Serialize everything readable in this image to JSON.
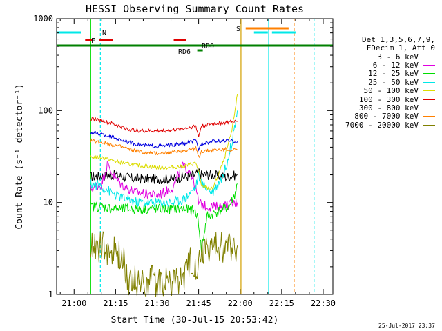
{
  "chart_data": {
    "type": "line",
    "title": "HESSI Observing Summary Count Rates",
    "xlabel": "Start Time (30-Jul-15 20:53:42)",
    "ylabel": "Count Rate (s⁻¹ detector⁻¹)",
    "ylog": true,
    "ylim": [
      1,
      1000
    ],
    "xlim_minutes": [
      -6.3,
      33.5
    ],
    "x_ticks": [
      "21:00",
      "21:15",
      "21:30",
      "21:45",
      "22:00",
      "22:15",
      "22:30"
    ],
    "x_tick_minutes": [
      0,
      15,
      30,
      45,
      60,
      75,
      90
    ],
    "y_ticks": [
      "1",
      "10",
      "100",
      "1000"
    ],
    "y_tick_values": [
      1,
      10,
      100,
      1000
    ],
    "legend_header": [
      "Det 1,3,5,6,7,9,",
      "FDecim 1, Att 0"
    ],
    "series": [
      {
        "name": "3 - 6 keV",
        "color": "#000000",
        "x": [
          6,
          10,
          15,
          20,
          25,
          30,
          35,
          40,
          44,
          45,
          46,
          50,
          55,
          59
        ],
        "y": [
          19,
          19.5,
          20,
          18.5,
          18,
          18,
          18,
          19,
          20,
          22,
          20,
          20,
          19,
          20
        ]
      },
      {
        "name": "6 - 12 keV",
        "color": "#e000e0",
        "x": [
          6,
          10,
          12,
          15,
          18,
          22,
          26,
          30,
          33,
          36,
          39,
          42,
          44,
          45,
          46,
          48,
          52,
          56,
          59
        ],
        "y": [
          14,
          16,
          26,
          18,
          15,
          13,
          12.5,
          12,
          13,
          15,
          25,
          22,
          14,
          10,
          9.5,
          9,
          9,
          9.5,
          10
        ]
      },
      {
        "name": "12 - 25 keV",
        "color": "#00dd00",
        "x": [
          6,
          10,
          15,
          20,
          25,
          30,
          35,
          40,
          44,
          45,
          46,
          48,
          52,
          56,
          58,
          59
        ],
        "y": [
          9,
          9,
          8.5,
          8.5,
          8.5,
          8.5,
          8.5,
          8.5,
          8,
          6,
          3,
          7,
          8,
          9,
          12,
          16
        ]
      },
      {
        "name": "25 - 50 keV",
        "color": "#00e8e8",
        "x": [
          6,
          10,
          15,
          20,
          25,
          30,
          35,
          40,
          44,
          45,
          46,
          50,
          54,
          57,
          59
        ],
        "y": [
          16,
          15,
          12,
          10.5,
          10,
          10,
          10,
          11,
          15,
          20,
          16,
          13,
          20,
          45,
          100
        ]
      },
      {
        "name": "50 - 100 keV",
        "color": "#dcdc00",
        "x": [
          6,
          10,
          15,
          20,
          25,
          30,
          35,
          40,
          44,
          45,
          46,
          50,
          54,
          57,
          59
        ],
        "y": [
          31,
          31,
          28,
          26,
          25,
          24,
          24,
          25,
          27,
          22,
          15,
          14,
          28,
          60,
          150
        ]
      },
      {
        "name": "100 - 300 keV",
        "color": "#e00000",
        "x": [
          6,
          10,
          15,
          20,
          25,
          30,
          35,
          40,
          44,
          45,
          46,
          50,
          55,
          59
        ],
        "y": [
          82,
          78,
          70,
          62,
          60,
          60,
          61,
          64,
          68,
          52,
          68,
          72,
          74,
          76
        ]
      },
      {
        "name": "300 - 800 keV",
        "color": "#0000e0",
        "x": [
          6,
          10,
          15,
          20,
          25,
          30,
          35,
          40,
          44,
          45,
          46,
          50,
          55,
          59
        ],
        "y": [
          58,
          55,
          50,
          45,
          42,
          41,
          42,
          44,
          47,
          38,
          44,
          46,
          47,
          46
        ]
      },
      {
        "name": "800 - 7000 keV",
        "color": "#ff8000",
        "x": [
          6,
          10,
          15,
          20,
          25,
          30,
          35,
          40,
          44,
          45,
          46,
          50,
          55,
          59
        ],
        "y": [
          47,
          45,
          42,
          38,
          35,
          34,
          35,
          37,
          39,
          31,
          36,
          37,
          38,
          37
        ]
      },
      {
        "name": "7000 - 20000 keV",
        "color": "#808000",
        "x": [
          6,
          10,
          15,
          18,
          20,
          25,
          30,
          35,
          40,
          42,
          45,
          46,
          50,
          55,
          59
        ],
        "y": [
          3.5,
          3.2,
          2.8,
          2.2,
          1.4,
          1.4,
          1.4,
          1.4,
          1.5,
          2.3,
          2.0,
          3.0,
          3.2,
          3.3,
          3.4
        ]
      }
    ],
    "annotations": [
      {
        "label": "N",
        "color": "#00e8e8"
      },
      {
        "label": "F",
        "color": "#e00000"
      },
      {
        "label": "S",
        "color": "#ff8000"
      },
      {
        "label": "RD0",
        "color": "#008000"
      },
      {
        "label": "RD6",
        "color": "#008000"
      }
    ],
    "flag_bars": [
      {
        "flag": "N",
        "color": "#00e8e8",
        "intervals": [
          [
            -6.3,
            2.5
          ],
          [
            65,
            70
          ],
          [
            71.5,
            80
          ]
        ]
      },
      {
        "flag": "F",
        "color": "#e00000",
        "intervals": [
          [
            4,
            6.5
          ],
          [
            9,
            14
          ]
        ]
      },
      {
        "flag": "F",
        "color": "#e00000",
        "intervals": [
          [
            36,
            40.5
          ]
        ]
      },
      {
        "flag": "S",
        "color": "#ff8000",
        "intervals": [
          [
            62,
            77.5
          ]
        ]
      },
      {
        "flag": "RD0",
        "color": "#008000",
        "intervals": [
          [
            -6.3,
            96
          ]
        ]
      },
      {
        "flag": "RD6",
        "color": "#008000",
        "intervals": [
          [
            44.5,
            46.5
          ]
        ]
      }
    ],
    "vertical_markers": [
      {
        "minute": 6,
        "color": "#00dd00",
        "style": "solid"
      },
      {
        "minute": 9.5,
        "color": "#00e8e8",
        "style": "dashed"
      },
      {
        "minute": 60.3,
        "color": "#d4a000",
        "style": "solid"
      },
      {
        "minute": 70.3,
        "color": "#00e8e8",
        "style": "solid"
      },
      {
        "minute": 79.5,
        "color": "#ff8000",
        "style": "dashed"
      },
      {
        "minute": 86.7,
        "color": "#00e8e8",
        "style": "dashed"
      }
    ],
    "grid": false,
    "legend_position": "right"
  },
  "timestamp": "25-Jul-2017 23:37"
}
